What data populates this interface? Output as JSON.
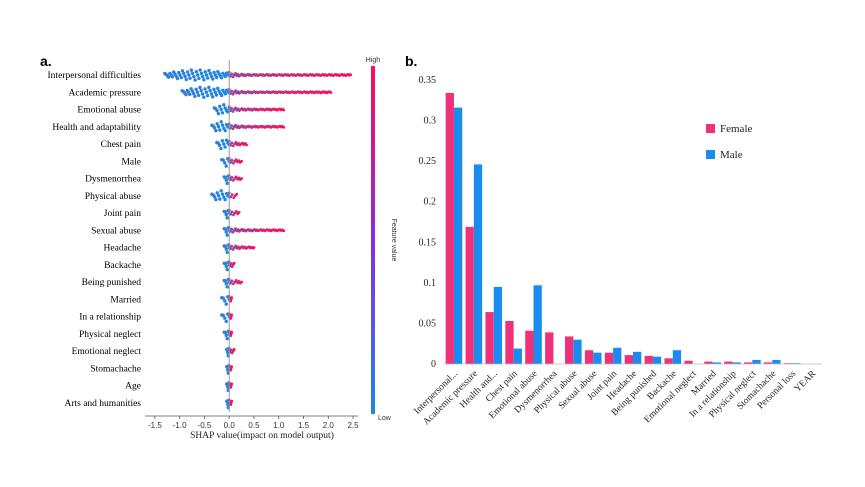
{
  "colors": {
    "high": "#ff0d57",
    "low": "#1e88e5",
    "female": "#f0317a",
    "male": "#1a8cf0"
  },
  "chart_data": [
    {
      "type": "scatter",
      "panel_label": "a.",
      "xlabel": "SHAP value(impact on model output)",
      "colorbar_label": "Feature value",
      "colorbar_high": "High",
      "colorbar_low": "Low",
      "xlim": [
        -1.7,
        2.6
      ],
      "xticks": [
        "-1.5",
        "-1.0",
        "-0.5",
        "0.0",
        "0.5",
        "1.0",
        "1.5",
        "2.0",
        "2.5"
      ],
      "features": [
        {
          "name": "Interpersonal difficulties",
          "min": -1.3,
          "max": 2.45
        },
        {
          "name": "Academic pressure",
          "min": -0.95,
          "max": 2.05
        },
        {
          "name": "Emotional abuse",
          "min": -0.3,
          "max": 1.1
        },
        {
          "name": "Health and adaptability",
          "min": -0.35,
          "max": 1.1
        },
        {
          "name": "Chest pain",
          "min": -0.25,
          "max": 0.35
        },
        {
          "name": "Male",
          "min": -0.15,
          "max": 0.25
        },
        {
          "name": "Dysmenorrhea",
          "min": -0.1,
          "max": 0.25
        },
        {
          "name": "Physical abuse",
          "min": -0.35,
          "max": 0.15
        },
        {
          "name": "Joint pain",
          "min": -0.1,
          "max": 0.2
        },
        {
          "name": "Sexual abuse",
          "min": -0.1,
          "max": 1.1
        },
        {
          "name": "Headache",
          "min": -0.1,
          "max": 0.5
        },
        {
          "name": "Backache",
          "min": -0.1,
          "max": 0.1
        },
        {
          "name": "Being punished",
          "min": -0.1,
          "max": 0.25
        },
        {
          "name": "Married",
          "min": -0.15,
          "max": 0.05
        },
        {
          "name": "In a relationship",
          "min": -0.15,
          "max": 0.05
        },
        {
          "name": "Physical neglect",
          "min": -0.1,
          "max": 0.05
        },
        {
          "name": "Emotional neglect",
          "min": -0.05,
          "max": 0.1
        },
        {
          "name": "Stomachache",
          "min": -0.05,
          "max": 0.05
        },
        {
          "name": "Age",
          "min": -0.05,
          "max": 0.05
        },
        {
          "name": "Arts and humanities",
          "min": -0.05,
          "max": 0.05
        }
      ]
    },
    {
      "type": "bar",
      "panel_label": "b.",
      "ylim": [
        0,
        0.35
      ],
      "yticks": [
        "0",
        "0.05",
        "0.1",
        "0.15",
        "0.2",
        "0.25",
        "0.3",
        "0.35"
      ],
      "categories": [
        "Interpersonal...",
        "Academic pressure",
        "Health and...",
        "Chest pain",
        "Emotional abuse",
        "Dysmenorrhea",
        "Physical abuse",
        "Sexual abuse",
        "Joint pain",
        "Headache",
        "Being punished",
        "Backache",
        "Emotional neglect",
        "Married",
        "In a relationship",
        "Physical neglect",
        "Stomachache",
        "Personal loss",
        "YEAR"
      ],
      "series": [
        {
          "name": "Female",
          "values": [
            0.334,
            0.169,
            0.064,
            0.053,
            0.041,
            0.039,
            0.034,
            0.017,
            0.014,
            0.011,
            0.01,
            0.007,
            0.004,
            0.003,
            0.003,
            0.002,
            0.002,
            0.001,
            0.0
          ]
        },
        {
          "name": "Male",
          "values": [
            0.316,
            0.246,
            0.095,
            0.019,
            0.097,
            0.0,
            0.03,
            0.014,
            0.02,
            0.015,
            0.009,
            0.017,
            0.0,
            0.002,
            0.002,
            0.005,
            0.005,
            0.001,
            0.0
          ]
        }
      ],
      "legend_position": "right"
    }
  ]
}
